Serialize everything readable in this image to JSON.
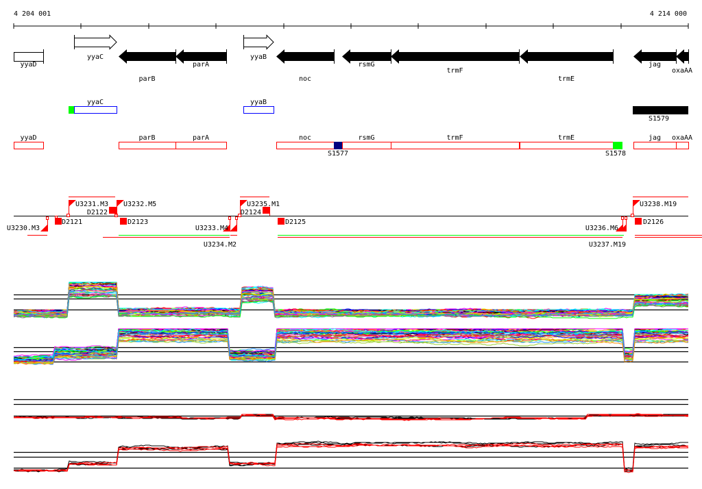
{
  "ruler": {
    "start_label": "4 204 001",
    "end_label": "4 214 000",
    "start": 4204001,
    "end": 4214000,
    "tick_step": 1000
  },
  "genes": [
    {
      "name": "yyaD",
      "start": 4204001,
      "end": 4204440,
      "strand": "none"
    },
    {
      "name": "yyaC",
      "start": 4204900,
      "end": 4205530,
      "strand": "+"
    },
    {
      "name": "parB",
      "start": 4205560,
      "end": 4206400,
      "strand": "-"
    },
    {
      "name": "parA",
      "start": 4206400,
      "end": 4207150,
      "strand": "-"
    },
    {
      "name": "yyaB",
      "start": 4207405,
      "end": 4207850,
      "strand": "+"
    },
    {
      "name": "noc",
      "start": 4207895,
      "end": 4208745,
      "strand": "-"
    },
    {
      "name": "rsmG",
      "start": 4208870,
      "end": 4209590,
      "strand": "-"
    },
    {
      "name": "trmF",
      "start": 4209590,
      "end": 4211490,
      "strand": "-"
    },
    {
      "name": "trmE",
      "start": 4211500,
      "end": 4212885,
      "strand": "-"
    },
    {
      "name": "jag",
      "start": 4213190,
      "end": 4213820,
      "strand": "-"
    },
    {
      "name": "oxaAA",
      "start": 4213820,
      "end": 4214000,
      "strand": "-"
    }
  ],
  "track2": [
    {
      "name": "yyaC",
      "type": "blue-box"
    },
    {
      "name": "yyaB",
      "type": "blue-box"
    },
    {
      "name": "S1579",
      "type": "black-bar"
    }
  ],
  "track3": {
    "genes": [
      "yyaD",
      "parB",
      "parA",
      "noc",
      "rsmG",
      "trmF",
      "trmE",
      "jag",
      "oxaAA"
    ],
    "markers": [
      {
        "label": "S1577",
        "color": "#000080"
      },
      {
        "label": "S1578",
        "color": "#00ff00"
      }
    ]
  },
  "transcription": {
    "upshifts": [
      "U3230.M3",
      "U3231.M3",
      "U3232.M5",
      "U3233.M4",
      "U3234.M2",
      "U3235.M1",
      "U3236.M6",
      "U3237.M19",
      "U3238.M19"
    ],
    "downshifts": [
      "D2121",
      "D2122",
      "D2123",
      "D2124",
      "D2125",
      "D2126"
    ]
  },
  "colors": {
    "accent": "#ff0000",
    "blue": "#0000ff",
    "green": "#00ff00",
    "navy": "#000080",
    "profile_palette": [
      "#ff0000",
      "#00ff00",
      "#0000ff",
      "#ff00ff",
      "#00ffff",
      "#ccff00",
      "#ff8c00",
      "#808080",
      "#1e90ff",
      "#000000",
      "#9acd32",
      "#ff1493"
    ]
  },
  "expression": {
    "track1": {
      "breaks": [
        4204001,
        4204814,
        4205546,
        4207355,
        4207863,
        4213179,
        4214000
      ],
      "levels": [
        0.1,
        0.75,
        0.15,
        0.6,
        0.12,
        0.45
      ]
    },
    "track2": {
      "breaks": [
        4204001,
        4204590,
        4205546,
        4207182,
        4207894,
        4213026,
        4213179,
        4214000
      ],
      "levels": [
        0.2,
        0.35,
        0.8,
        0.3,
        0.8,
        0.3,
        0.8
      ]
    },
    "track3": {
      "breaks": [
        4204001,
        4206500,
        4207355,
        4207863,
        4212500,
        4214000
      ],
      "levels": [
        0.35,
        0.3,
        0.45,
        0.3,
        0.45
      ]
    },
    "track4": {
      "breaks": [
        4204001,
        4204814,
        4205546,
        4207182,
        4207894,
        4213026,
        4213179,
        4214000
      ],
      "levels": [
        0.1,
        0.3,
        0.75,
        0.3,
        0.85,
        0.1,
        0.8
      ]
    }
  }
}
